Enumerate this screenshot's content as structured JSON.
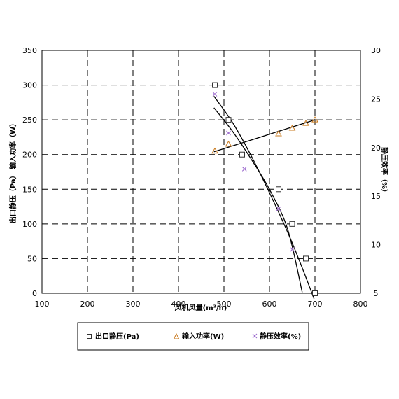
{
  "chart_data": {
    "type": "scatter",
    "xlabel": "风机风量(m³/h)",
    "ylabel_left": "出口静压（Pa）  输入功率（W）",
    "ylabel_right": "静压效率（%）",
    "xlim": [
      100,
      800
    ],
    "ylim_left": [
      0,
      350
    ],
    "ylim_right": [
      5,
      30
    ],
    "x_ticks": [
      "100",
      "200",
      "300",
      "400",
      "500",
      "600",
      "700",
      "800"
    ],
    "y_left_ticks": [
      "0",
      "50",
      "100",
      "150",
      "200",
      "250",
      "300",
      "350"
    ],
    "y_right_ticks": [
      "5",
      "10",
      "15",
      "20",
      "25",
      "30"
    ],
    "grid": true,
    "legend_position": "bottom",
    "series": [
      {
        "name": "出口静压(Pa)",
        "axis": "left",
        "marker": "square",
        "color": "#333333",
        "points": [
          {
            "x": 480,
            "y": 300
          },
          {
            "x": 510,
            "y": 250
          },
          {
            "x": 540,
            "y": 200
          },
          {
            "x": 620,
            "y": 150
          },
          {
            "x": 650,
            "y": 100
          },
          {
            "x": 680,
            "y": 50
          },
          {
            "x": 700,
            "y": 0
          }
        ],
        "trend": [
          {
            "x": 478,
            "y": 284
          },
          {
            "x": 520,
            "y": 245
          },
          {
            "x": 560,
            "y": 198
          },
          {
            "x": 600,
            "y": 145
          },
          {
            "x": 640,
            "y": 88
          },
          {
            "x": 670,
            "y": 40
          },
          {
            "x": 698,
            "y": -8
          }
        ]
      },
      {
        "name": "输入功率(W)",
        "axis": "left",
        "marker": "triangle",
        "color": "#c97a1e",
        "points": [
          {
            "x": 480,
            "y": 205
          },
          {
            "x": 510,
            "y": 215
          },
          {
            "x": 620,
            "y": 230
          },
          {
            "x": 650,
            "y": 238
          },
          {
            "x": 680,
            "y": 245
          },
          {
            "x": 700,
            "y": 250
          }
        ],
        "trend": [
          {
            "x": 478,
            "y": 204
          },
          {
            "x": 700,
            "y": 250
          }
        ]
      },
      {
        "name": "静压效率(%)",
        "axis": "right",
        "marker": "cross",
        "color": "#9966cc",
        "points": [
          {
            "x": 480,
            "y": 25.5
          },
          {
            "x": 510,
            "y": 21.5
          },
          {
            "x": 545,
            "y": 17.8
          },
          {
            "x": 620,
            "y": 13.7
          },
          {
            "x": 650,
            "y": 9.5
          }
        ],
        "trend": [
          {
            "x": 478,
            "y": 24.1
          },
          {
            "x": 520,
            "y": 21.6
          },
          {
            "x": 560,
            "y": 18.8
          },
          {
            "x": 600,
            "y": 15.7
          },
          {
            "x": 640,
            "y": 11.6
          },
          {
            "x": 672,
            "y": 5.1
          }
        ]
      }
    ]
  }
}
